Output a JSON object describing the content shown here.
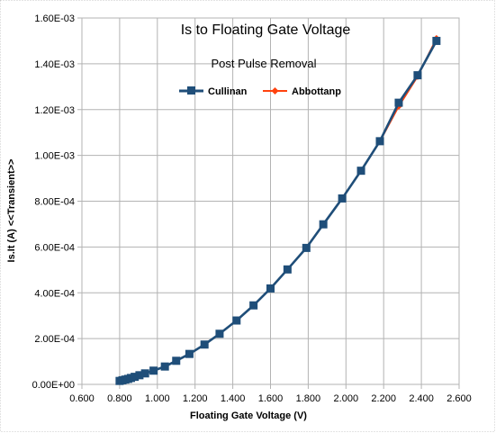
{
  "chart_data": {
    "type": "line",
    "title": "Is to Floating Gate Voltage",
    "subtitle": "Post Pulse Removal",
    "xlabel": "Floating Gate Voltage (V)",
    "ylabel": "Is.It (A) <<Transient>>",
    "xlim": [
      0.6,
      2.6
    ],
    "ylim": [
      0,
      0.0016
    ],
    "grid": true,
    "legend_position": "top-center",
    "x_ticks": [
      "0.600",
      "0.800",
      "1.000",
      "1.200",
      "1.400",
      "1.600",
      "1.800",
      "2.000",
      "2.200",
      "2.400",
      "2.600"
    ],
    "y_ticks": [
      "0.00E+00",
      "2.00E-04",
      "4.00E-04",
      "6.00E-04",
      "8.00E-04",
      "1.00E-03",
      "1.20E-03",
      "1.40E-03",
      "1.60E-03"
    ],
    "series": [
      {
        "name": "Cullinan",
        "color": "#1f4e79",
        "marker": "square",
        "x": [
          0.8,
          0.815,
          0.83,
          0.845,
          0.86,
          0.88,
          0.905,
          0.935,
          0.98,
          1.04,
          1.1,
          1.17,
          1.25,
          1.33,
          1.42,
          1.51,
          1.6,
          1.69,
          1.79,
          1.88,
          1.98,
          2.08,
          2.18,
          2.28,
          2.38,
          2.48
        ],
        "y": [
          1.5e-05,
          1.8e-05,
          2.1e-05,
          2.4e-05,
          2.8e-05,
          3.3e-05,
          4e-05,
          4.8e-05,
          6e-05,
          7.8e-05,
          0.000103,
          0.000133,
          0.000174,
          0.000221,
          0.000279,
          0.000345,
          0.000419,
          0.000502,
          0.000596,
          0.000699,
          0.000812,
          0.000933,
          0.001062,
          0.00123,
          0.00135,
          0.0015
        ]
      },
      {
        "name": "Abbottanp",
        "color": "#ff420e",
        "marker": "diamond",
        "x": [
          0.8,
          0.815,
          0.83,
          0.845,
          0.86,
          0.88,
          0.905,
          0.935,
          0.98,
          1.04,
          1.1,
          1.17,
          1.25,
          1.33,
          1.42,
          1.51,
          1.6,
          1.69,
          1.79,
          1.88,
          1.98,
          2.08,
          2.18,
          2.28,
          2.38,
          2.48
        ],
        "y": [
          1.5e-05,
          1.8e-05,
          2.1e-05,
          2.4e-05,
          2.8e-05,
          3.3e-05,
          4e-05,
          4.8e-05,
          6e-05,
          7.8e-05,
          0.000103,
          0.000133,
          0.000174,
          0.000221,
          0.000279,
          0.000345,
          0.000419,
          0.000502,
          0.000596,
          0.000699,
          0.000812,
          0.000933,
          0.001062,
          0.001215,
          0.001345,
          0.00151
        ]
      }
    ]
  }
}
